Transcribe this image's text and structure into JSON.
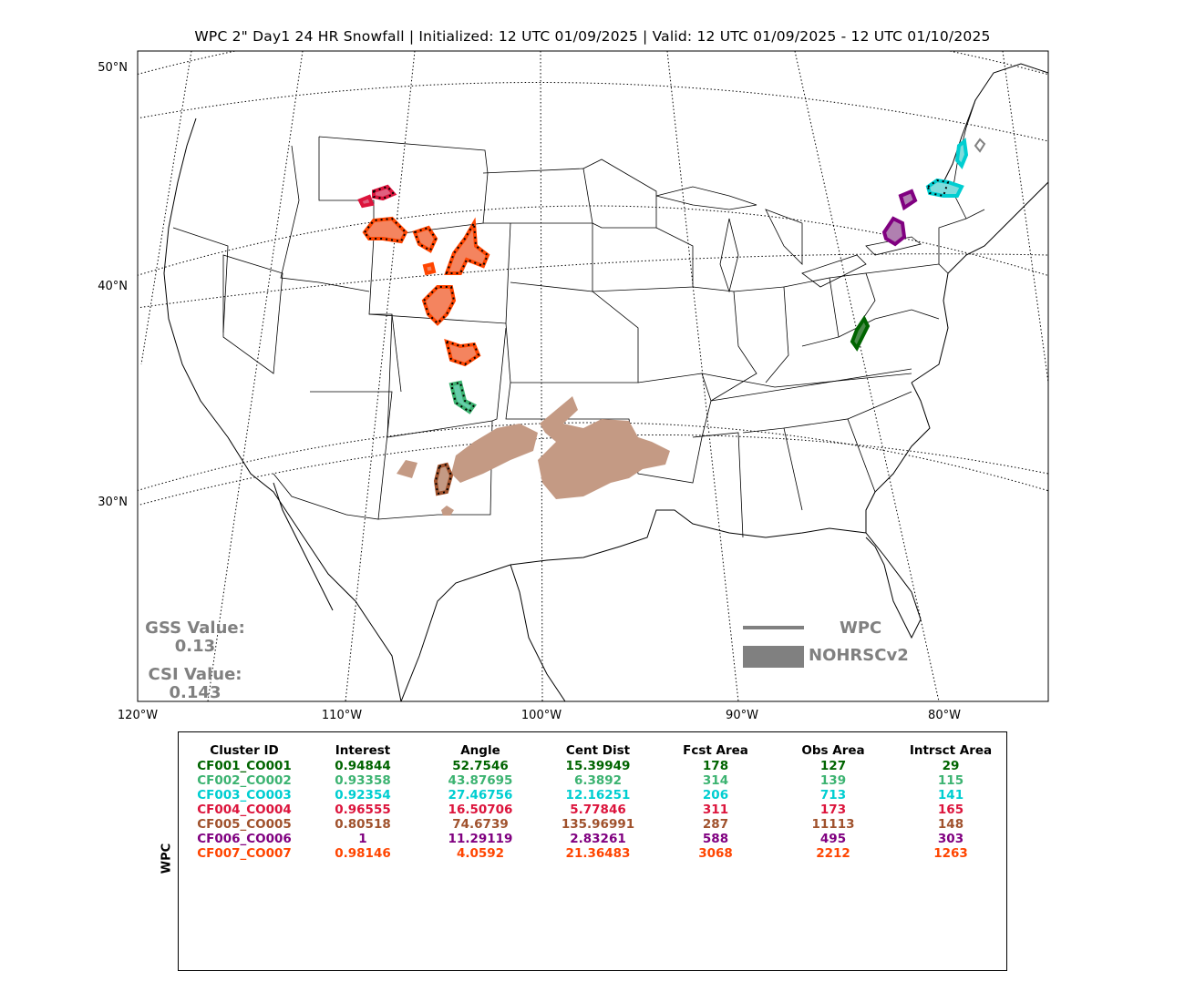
{
  "title": "WPC 2\" Day1 24 HR Snowfall | Initialized: 12 UTC 01/09/2025 | Valid: 12 UTC 01/09/2025 - 12 UTC 01/10/2025",
  "map": {
    "lat_labels": [
      "50°N",
      "40°N",
      "30°N"
    ],
    "lon_labels": [
      "120°W",
      "110°W",
      "100°W",
      "90°W",
      "80°W"
    ],
    "frame_color": "#000000",
    "fill_color_obs": "#c49a84"
  },
  "stats": {
    "gss_label": "GSS Value:",
    "gss_value": "0.13",
    "csi_label": "CSI Value:",
    "csi_value": "0.143",
    "color": "#808080"
  },
  "legend": {
    "fcst_label": "WPC",
    "obs_label": "NOHRSCv2",
    "color": "#808080"
  },
  "table": {
    "side_label": "WPC",
    "headers": [
      "Cluster ID",
      "Interest",
      "Angle",
      "Cent Dist",
      "Fcst Area",
      "Obs Area",
      "Intrsct Area"
    ],
    "rows": [
      {
        "color": "#006400",
        "cells": [
          "CF001_CO001",
          "0.94844",
          "52.7546",
          "15.39949",
          "178",
          "127",
          "29"
        ]
      },
      {
        "color": "#3cb371",
        "cells": [
          "CF002_CO002",
          "0.93358",
          "43.87695",
          "6.3892",
          "314",
          "139",
          "115"
        ]
      },
      {
        "color": "#00ced1",
        "cells": [
          "CF003_CO003",
          "0.92354",
          "27.46756",
          "12.16251",
          "206",
          "713",
          "141"
        ]
      },
      {
        "color": "#dc143c",
        "cells": [
          "CF004_CO004",
          "0.96555",
          "16.50706",
          "5.77846",
          "311",
          "173",
          "165"
        ]
      },
      {
        "color": "#a0522d",
        "cells": [
          "CF005_CO005",
          "0.80518",
          "74.6739",
          "135.96991",
          "287",
          "11113",
          "148"
        ]
      },
      {
        "color": "#800080",
        "cells": [
          "CF006_CO006",
          "1",
          "11.29119",
          "2.83261",
          "588",
          "495",
          "303"
        ]
      },
      {
        "color": "#ff4500",
        "cells": [
          "CF007_CO007",
          "0.98146",
          "4.0592",
          "21.36483",
          "3068",
          "2212",
          "1263"
        ]
      }
    ]
  }
}
